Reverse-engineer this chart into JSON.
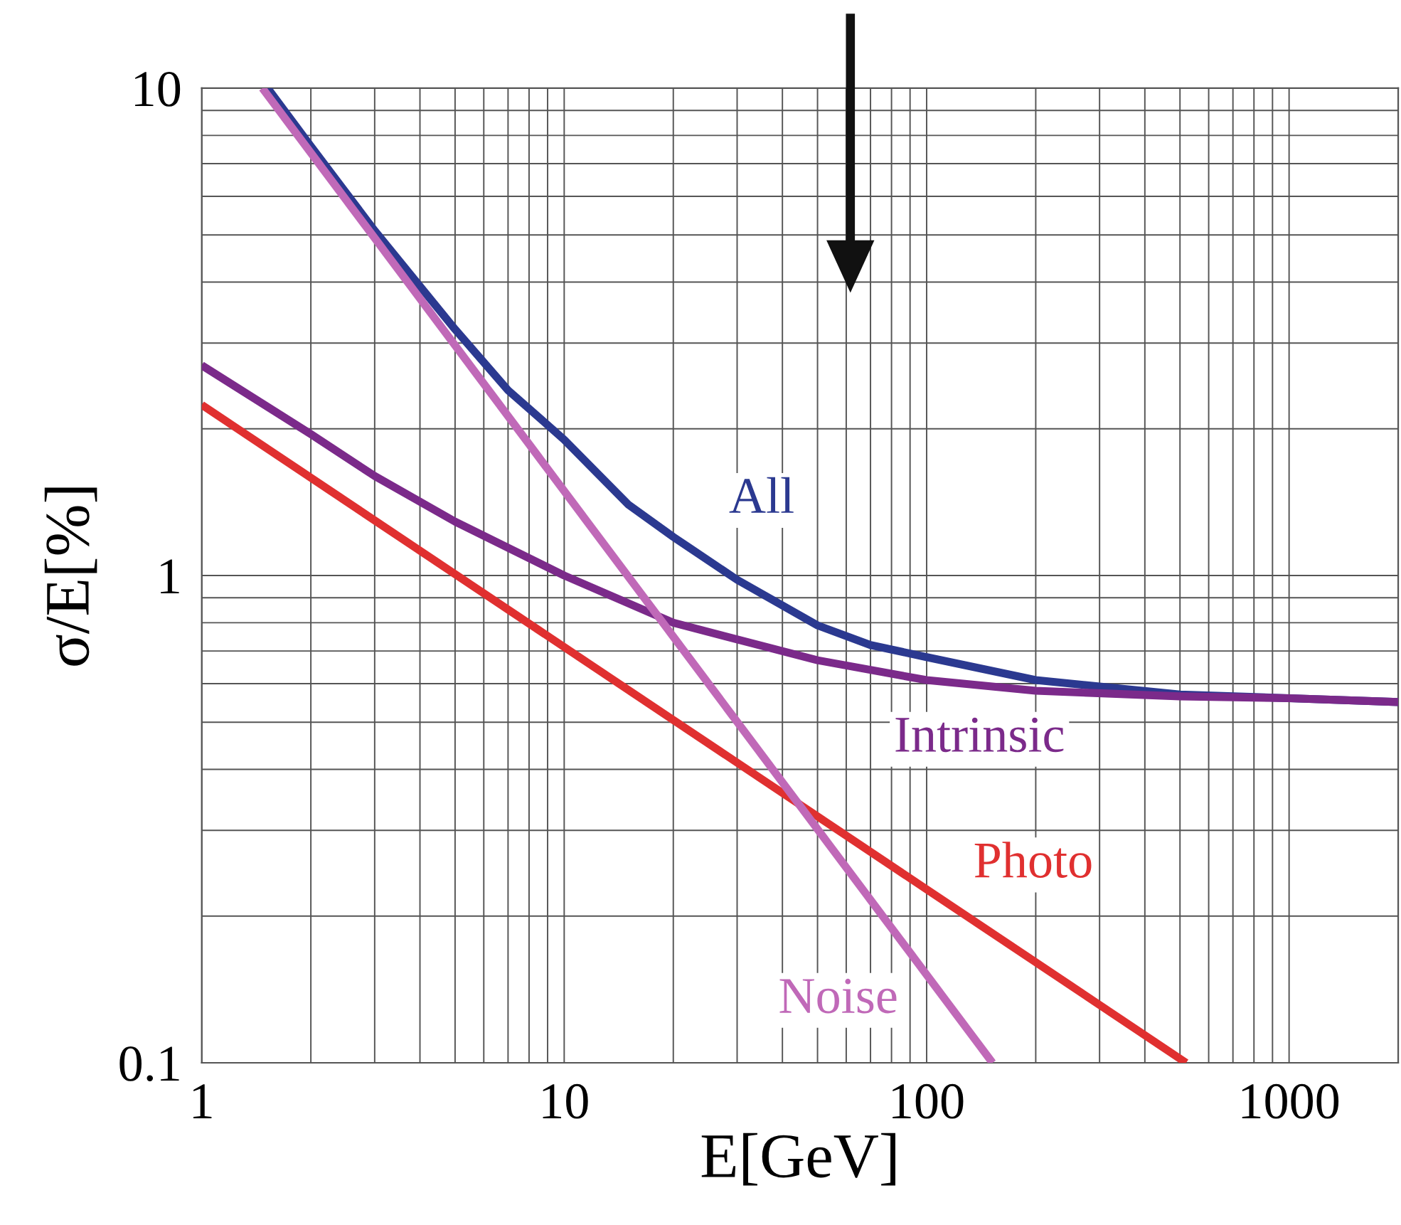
{
  "chart_data": {
    "type": "line",
    "xlabel": "E[GeV]",
    "ylabel": "σ/E[%]",
    "log": "xy",
    "grid": true,
    "legend": false,
    "xlim": [
      1,
      2000
    ],
    "xticks": [
      1,
      10,
      100,
      1000
    ],
    "ylim": [
      0.1,
      10
    ],
    "yticks": [
      0.1,
      1,
      10
    ],
    "series": [
      {
        "name": "All",
        "color": "#2b3990",
        "x": [
          1.52,
          2,
          3,
          5,
          7,
          10,
          15,
          20,
          30,
          50,
          70,
          100,
          200,
          500,
          1000,
          2000
        ],
        "values": [
          10,
          7.6,
          5.1,
          3.2,
          2.4,
          1.9,
          1.4,
          1.2,
          0.98,
          0.79,
          0.72,
          0.68,
          0.61,
          0.57,
          0.56,
          0.55
        ]
      },
      {
        "name": "Intrinsic",
        "color": "#7b2a8a",
        "x": [
          1,
          2,
          3,
          5,
          10,
          20,
          50,
          100,
          200,
          500,
          1000,
          2000
        ],
        "values": [
          2.7,
          1.95,
          1.6,
          1.29,
          1.0,
          0.8,
          0.67,
          0.61,
          0.58,
          0.565,
          0.56,
          0.55
        ]
      },
      {
        "name": "Photo",
        "color": "#e03030",
        "x": [
          1,
          520
        ],
        "values": [
          2.24,
          0.1
        ]
      },
      {
        "name": "Noise",
        "color": "#c069b8",
        "x": [
          1.47,
          152
        ],
        "values": [
          10,
          0.1
        ]
      }
    ]
  }
}
